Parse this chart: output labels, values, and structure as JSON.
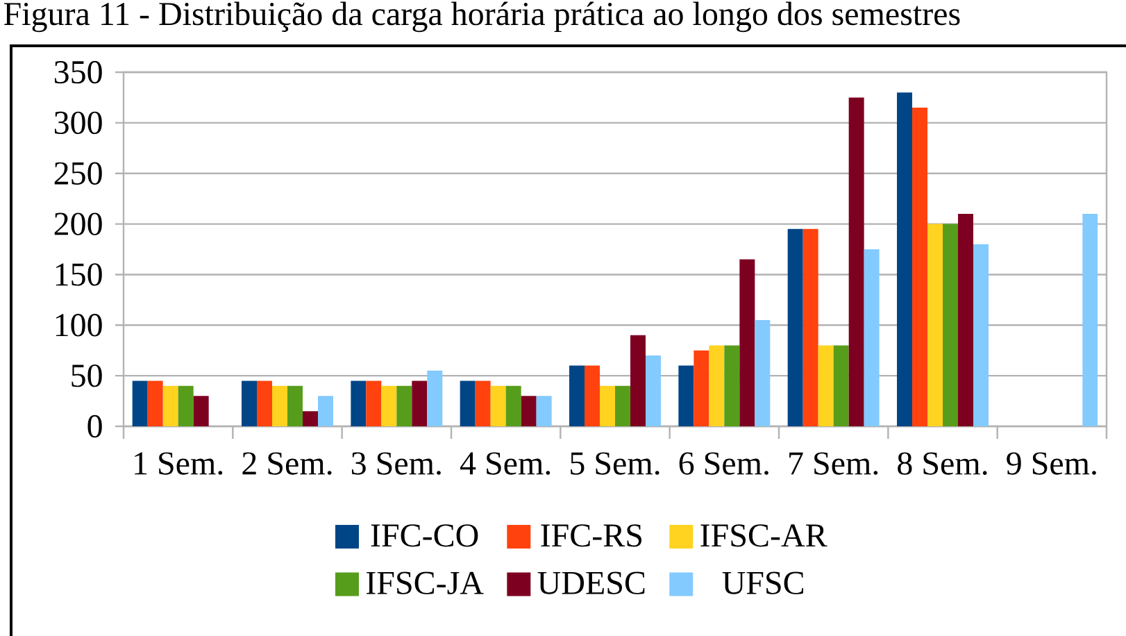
{
  "chart_data": {
    "type": "bar",
    "title": "Figura 11 - Distribuição da carga horária prática ao longo dos semestres",
    "categories": [
      "1 Sem.",
      "2 Sem.",
      "3 Sem.",
      "4 Sem.",
      "5 Sem.",
      "6 Sem.",
      "7 Sem.",
      "8 Sem.",
      "9 Sem."
    ],
    "series": [
      {
        "name": "IFC-CO",
        "color": "#004586",
        "values": [
          45,
          45,
          45,
          45,
          60,
          60,
          195,
          330,
          null
        ]
      },
      {
        "name": "IFC-RS",
        "color": "#ff420e",
        "values": [
          45,
          45,
          45,
          45,
          60,
          75,
          195,
          315,
          null
        ]
      },
      {
        "name": "IFSC-AR",
        "color": "#ffd320",
        "values": [
          40,
          40,
          40,
          40,
          40,
          80,
          80,
          200,
          null
        ]
      },
      {
        "name": "IFSC-JA",
        "color": "#579d1c",
        "values": [
          40,
          40,
          40,
          40,
          40,
          80,
          80,
          200,
          null
        ]
      },
      {
        "name": "UDESC",
        "color": "#7e0021",
        "values": [
          30,
          15,
          45,
          30,
          90,
          165,
          325,
          210,
          null
        ]
      },
      {
        "name": "UFSC",
        "color": "#83caff",
        "values": [
          null,
          30,
          55,
          30,
          70,
          105,
          175,
          180,
          210
        ]
      }
    ],
    "ylim": [
      0,
      350
    ],
    "yticks": [
      0,
      50,
      100,
      150,
      200,
      250,
      300,
      350
    ],
    "grid": "y",
    "legend": "bottom"
  }
}
